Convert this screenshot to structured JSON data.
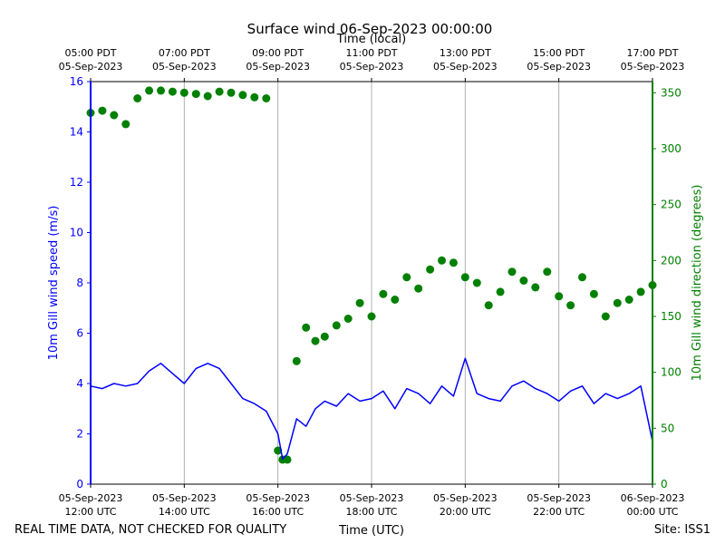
{
  "chart_data": {
    "type": "line+scatter",
    "title": "Surface wind 06-Sep-2023 00:00:00",
    "top_axis_label": "Time (local)",
    "xlabel": "Time (UTC)",
    "ylabel_left": "10m Gill wind speed (m/s)",
    "ylabel_right": "10m Gill wind direction (degrees)",
    "footer_left": "REAL TIME DATA, NOT CHECKED FOR QUALITY",
    "footer_right": "Site: ISS1",
    "x_range_hours_utc": [
      12,
      24
    ],
    "ylim_left": [
      0,
      16
    ],
    "ylim_right": [
      0,
      360
    ],
    "grid": "vertical only",
    "colors": {
      "speed": "#0000ff",
      "direction": "#008000",
      "grid": "#b0b0b0",
      "text": "#000000"
    },
    "left_ticks": [
      "0",
      "2",
      "4",
      "6",
      "8",
      "10",
      "12",
      "14",
      "16"
    ],
    "right_ticks": [
      "0",
      "50",
      "100",
      "150",
      "200",
      "250",
      "300",
      "350"
    ],
    "bottom_ticks": [
      {
        "line1": "05-Sep-2023",
        "line2": "12:00 UTC"
      },
      {
        "line1": "05-Sep-2023",
        "line2": "14:00 UTC"
      },
      {
        "line1": "05-Sep-2023",
        "line2": "16:00 UTC"
      },
      {
        "line1": "05-Sep-2023",
        "line2": "18:00 UTC"
      },
      {
        "line1": "05-Sep-2023",
        "line2": "20:00 UTC"
      },
      {
        "line1": "05-Sep-2023",
        "line2": "22:00 UTC"
      },
      {
        "line1": "06-Sep-2023",
        "line2": "00:00 UTC"
      }
    ],
    "top_ticks": [
      {
        "line1": "05:00 PDT",
        "line2": "05-Sep-2023"
      },
      {
        "line1": "07:00 PDT",
        "line2": "05-Sep-2023"
      },
      {
        "line1": "09:00 PDT",
        "line2": "05-Sep-2023"
      },
      {
        "line1": "11:00 PDT",
        "line2": "05-Sep-2023"
      },
      {
        "line1": "13:00 PDT",
        "line2": "05-Sep-2023"
      },
      {
        "line1": "15:00 PDT",
        "line2": "05-Sep-2023"
      },
      {
        "line1": "17:00 PDT",
        "line2": "05-Sep-2023"
      }
    ],
    "series": [
      {
        "name": "10m Gill wind speed (m/s)",
        "axis": "left",
        "style": "line",
        "x_hours_utc": [
          12.0,
          12.25,
          12.5,
          12.75,
          13.0,
          13.25,
          13.5,
          13.75,
          14.0,
          14.25,
          14.5,
          14.75,
          15.0,
          15.25,
          15.5,
          15.75,
          16.0,
          16.1,
          16.2,
          16.4,
          16.6,
          16.8,
          17.0,
          17.25,
          17.5,
          17.75,
          18.0,
          18.25,
          18.5,
          18.75,
          19.0,
          19.25,
          19.5,
          19.75,
          20.0,
          20.25,
          20.5,
          20.75,
          21.0,
          21.25,
          21.5,
          21.75,
          22.0,
          22.25,
          22.5,
          22.75,
          23.0,
          23.25,
          23.5,
          23.75,
          24.0
        ],
        "values": [
          3.9,
          3.8,
          4.0,
          3.9,
          4.0,
          4.5,
          4.8,
          4.4,
          4.0,
          4.6,
          4.8,
          4.6,
          4.0,
          3.4,
          3.2,
          2.9,
          2.0,
          1.0,
          1.2,
          2.6,
          2.3,
          3.0,
          3.3,
          3.1,
          3.6,
          3.3,
          3.4,
          3.7,
          3.0,
          3.8,
          3.6,
          3.2,
          3.9,
          3.5,
          5.0,
          3.6,
          3.4,
          3.3,
          3.9,
          4.1,
          3.8,
          3.6,
          3.3,
          3.7,
          3.9,
          3.2,
          3.6,
          3.4,
          3.6,
          3.9,
          1.7
        ]
      },
      {
        "name": "10m Gill wind direction (degrees)",
        "axis": "right",
        "style": "markers",
        "x_hours_utc": [
          12.0,
          12.25,
          12.5,
          12.75,
          13.0,
          13.25,
          13.5,
          13.75,
          14.0,
          14.25,
          14.5,
          14.75,
          15.0,
          15.25,
          15.5,
          15.75,
          16.0,
          16.1,
          16.2,
          16.4,
          16.6,
          16.8,
          17.0,
          17.25,
          17.5,
          17.75,
          18.0,
          18.25,
          18.5,
          18.75,
          19.0,
          19.25,
          19.5,
          19.75,
          20.0,
          20.25,
          20.5,
          20.75,
          21.0,
          21.25,
          21.5,
          21.75,
          22.0,
          22.25,
          22.5,
          22.75,
          23.0,
          23.25,
          23.5,
          23.75,
          24.0
        ],
        "values": [
          332,
          334,
          330,
          322,
          345,
          352,
          352,
          351,
          350,
          349,
          347,
          351,
          350,
          348,
          346,
          345,
          30,
          22,
          22,
          110,
          140,
          128,
          132,
          142,
          148,
          162,
          150,
          170,
          165,
          185,
          175,
          192,
          200,
          198,
          185,
          180,
          160,
          172,
          190,
          182,
          176,
          190,
          168,
          160,
          185,
          170,
          150,
          162,
          165,
          172,
          178
        ]
      }
    ]
  }
}
